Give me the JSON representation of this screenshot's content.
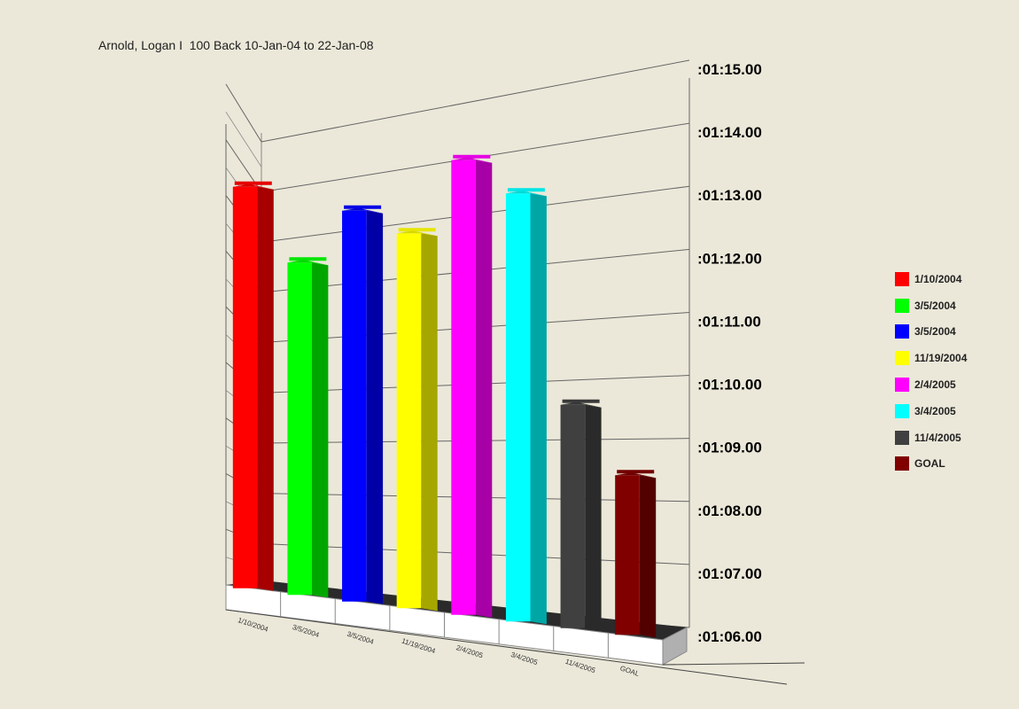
{
  "title": "Arnold, Logan I  100 Back 10-Jan-04 to 22-Jan-08",
  "chart_data": {
    "type": "bar",
    "title": "Arnold, Logan I  100 Back 10-Jan-04 to 22-Jan-08",
    "categories": [
      "1/10/2004",
      "3/5/2004",
      "3/5/2004",
      "11/19/2004",
      "2/4/2005",
      "3/4/2005",
      "11/4/2005",
      "GOAL"
    ],
    "values": [
      73.55,
      72.25,
      73.35,
      73.05,
      74.55,
      74.05,
      70.2,
      69.0
    ],
    "colors": [
      "#ff0000",
      "#00ff00",
      "#0000ff",
      "#ffff00",
      "#ff00ff",
      "#00ffff",
      "#404040",
      "#800000"
    ],
    "y_tick_labels": [
      ":01:06.00",
      ":01:07.00",
      ":01:08.00",
      ":01:09.00",
      ":01:10.00",
      ":01:11.00",
      ":01:12.00",
      ":01:13.00",
      ":01:14.00",
      ":01:15.00"
    ],
    "ylim": [
      66,
      75
    ],
    "grid": true,
    "legend": "right",
    "style": "3d"
  },
  "legend": {
    "items": [
      {
        "label": "1/10/2004",
        "color": "#ff0000"
      },
      {
        "label": "3/5/2004",
        "color": "#00ff00"
      },
      {
        "label": "3/5/2004",
        "color": "#0000ff"
      },
      {
        "label": "11/19/2004",
        "color": "#ffff00"
      },
      {
        "label": "2/4/2005",
        "color": "#ff00ff"
      },
      {
        "label": "3/4/2005",
        "color": "#00ffff"
      },
      {
        "label": "11/4/2005",
        "color": "#404040"
      },
      {
        "label": "GOAL",
        "color": "#800000"
      }
    ]
  }
}
